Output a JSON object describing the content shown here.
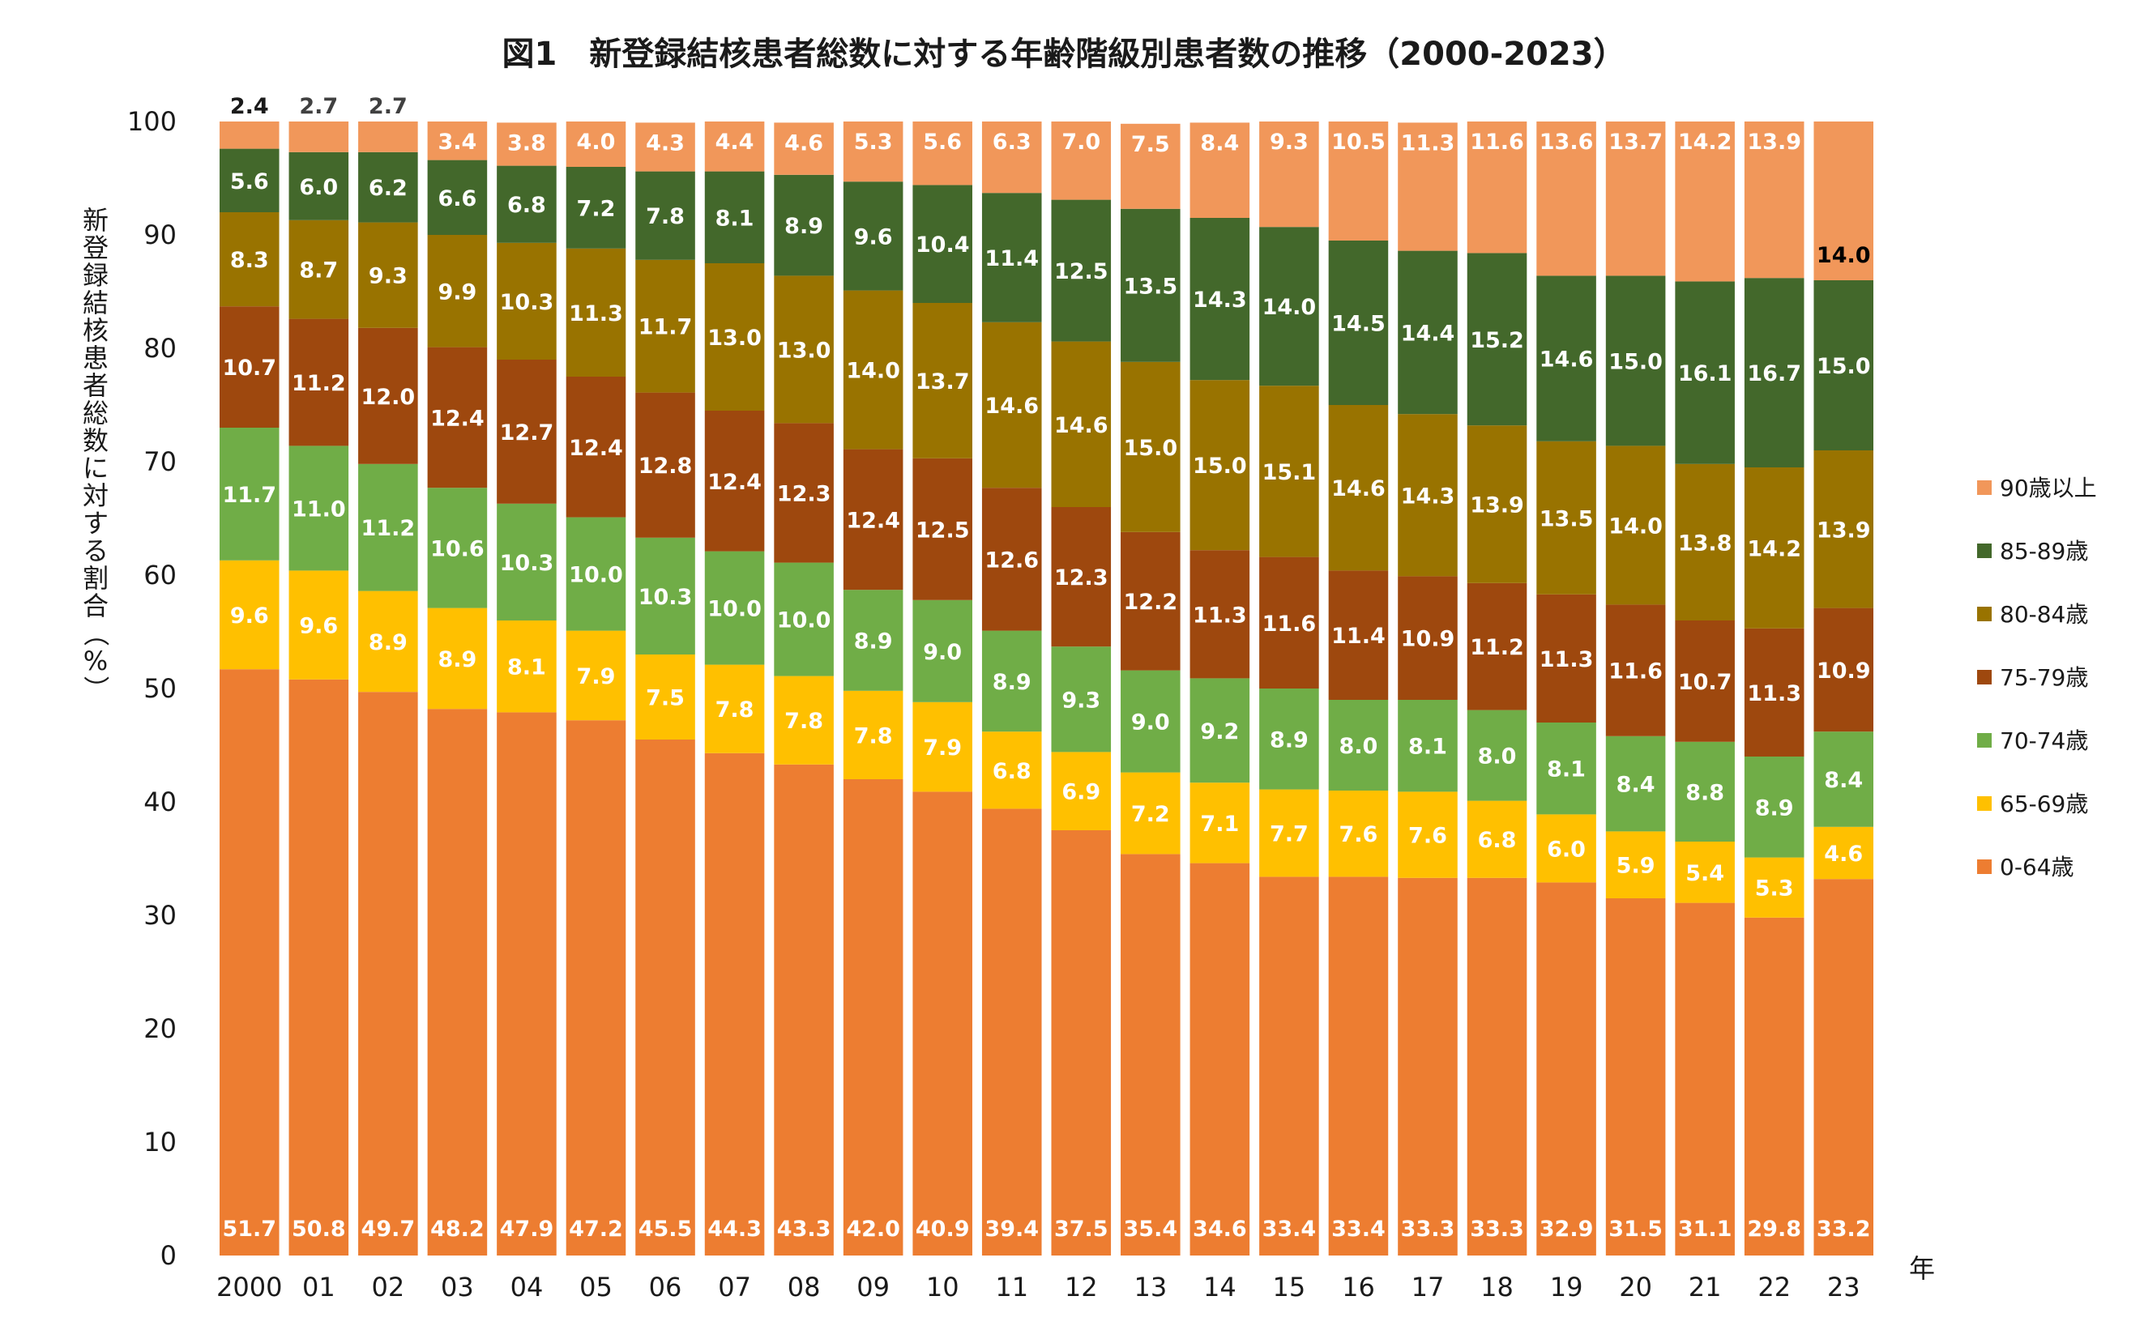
{
  "chart_data": {
    "type": "bar",
    "stacked": true,
    "title": "図1　新登録結核患者総数に対する年齢階級別患者数の推移（2000-2023）",
    "xlabel": "年",
    "ylabel": "新登録結核患者総数に対する割合（%）",
    "ylim": [
      0,
      100
    ],
    "yticks": [
      "0",
      "10",
      "20",
      "30",
      "40",
      "50",
      "60",
      "70",
      "80",
      "90",
      "100"
    ],
    "categories": [
      "2000",
      "01",
      "02",
      "03",
      "04",
      "05",
      "06",
      "07",
      "08",
      "09",
      "10",
      "11",
      "12",
      "13",
      "14",
      "15",
      "16",
      "17",
      "18",
      "19",
      "20",
      "21",
      "22",
      "23"
    ],
    "grid": false,
    "legend_position": "right",
    "series": [
      {
        "name": "0-64歳",
        "color": "#ED7D31",
        "label_color": "#ffffff",
        "values": [
          51.7,
          50.8,
          49.7,
          48.2,
          47.9,
          47.2,
          45.5,
          44.3,
          43.3,
          42.0,
          40.9,
          39.4,
          37.5,
          35.4,
          34.6,
          33.4,
          33.4,
          33.3,
          33.3,
          32.9,
          31.5,
          31.1,
          29.8,
          33.2
        ]
      },
      {
        "name": "65-69歳",
        "color": "#FFC000",
        "label_color": "#ffffff",
        "values": [
          9.6,
          9.6,
          8.9,
          8.9,
          8.1,
          7.9,
          7.5,
          7.8,
          7.8,
          7.8,
          7.9,
          6.8,
          6.9,
          7.2,
          7.1,
          7.7,
          7.6,
          7.6,
          6.8,
          6.0,
          5.9,
          5.4,
          5.3,
          4.6
        ]
      },
      {
        "name": "70-74歳",
        "color": "#70AD47",
        "label_color": "#ffffff",
        "values": [
          11.7,
          11.0,
          11.2,
          10.6,
          10.3,
          10.0,
          10.3,
          10.0,
          10.0,
          8.9,
          9.0,
          8.9,
          9.3,
          9.0,
          9.2,
          8.9,
          8.0,
          8.1,
          8.0,
          8.1,
          8.4,
          8.8,
          8.9,
          8.4
        ]
      },
      {
        "name": "75-79歳",
        "color": "#9E480E",
        "label_color": "#ffffff",
        "values": [
          10.7,
          11.2,
          12.0,
          12.4,
          12.7,
          12.4,
          12.8,
          12.4,
          12.3,
          12.4,
          12.5,
          12.6,
          12.3,
          12.2,
          11.3,
          11.6,
          11.4,
          10.9,
          11.2,
          11.3,
          11.6,
          10.7,
          11.3,
          10.9
        ]
      },
      {
        "name": "80-84歳",
        "color": "#997300",
        "label_color": "#ffffff",
        "values": [
          8.3,
          8.7,
          9.3,
          9.9,
          10.3,
          11.3,
          11.7,
          13.0,
          13.0,
          14.0,
          13.7,
          14.6,
          14.6,
          15.0,
          15.0,
          15.1,
          14.6,
          14.3,
          13.9,
          13.5,
          14.0,
          13.8,
          14.2,
          13.9
        ]
      },
      {
        "name": "85-89歳",
        "color": "#43682B",
        "label_color": "#ffffff",
        "values": [
          5.6,
          6.0,
          6.2,
          6.6,
          6.8,
          7.2,
          7.8,
          8.1,
          8.9,
          9.6,
          10.4,
          11.4,
          12.5,
          13.5,
          14.3,
          14.0,
          14.5,
          14.4,
          15.2,
          14.6,
          15.0,
          16.1,
          16.7,
          15.0
        ]
      },
      {
        "name": "90歳以上",
        "color": "#F1975A",
        "label_color": "#ffffff",
        "values": [
          2.4,
          2.7,
          2.7,
          3.4,
          3.8,
          4.0,
          4.3,
          4.4,
          4.6,
          5.3,
          5.6,
          6.3,
          7.0,
          7.5,
          8.4,
          9.3,
          10.5,
          11.3,
          11.6,
          13.6,
          13.7,
          14.2,
          13.9,
          14.0
        ]
      }
    ],
    "annotations": [
      {
        "text": "2.4",
        "category": "2000",
        "series": "90歳以上",
        "position": "above-bar",
        "color": "#1a1a1a"
      },
      {
        "text": "2.7",
        "category": "01",
        "series": "90歳以上",
        "position": "above-bar",
        "color": "#404040"
      },
      {
        "text": "2.7",
        "category": "02",
        "series": "90歳以上",
        "position": "above-bar",
        "color": "#404040"
      },
      {
        "text": "14.0",
        "category": "23",
        "series": "90歳以上",
        "position": "above-85-89",
        "color": "#000000"
      }
    ]
  }
}
